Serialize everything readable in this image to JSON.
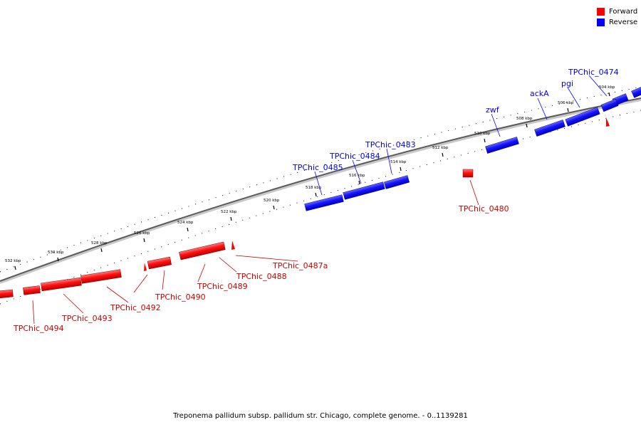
{
  "legend": {
    "forward": {
      "label": "Forward",
      "color": "#ff0000"
    },
    "reverse": {
      "label": "Reverse",
      "color": "#0000ff"
    }
  },
  "caption": "Treponema pallidum subsp. pallidum str. Chicago, complete genome. - 0..1139281",
  "ticks": [
    "504 kbp",
    "506 kbp",
    "508 kbp",
    "510 kbp",
    "512 kbp",
    "514 kbp",
    "516 kbp",
    "518 kbp",
    "520 kbp",
    "522 kbp",
    "524 kbp",
    "526 kbp",
    "528 kbp",
    "530 kbp",
    "532 kbp"
  ],
  "reverse_genes": [
    "TPChic_0474",
    "pgi",
    "ackA",
    "zwf",
    "TPChic_0483",
    "TPChic_0484",
    "TPChic_0485"
  ],
  "forward_genes": [
    "TPChic_0480",
    "TPChic_0487a",
    "TPChic_0488",
    "TPChic_0489",
    "TPChic_0490",
    "TPChic_0492",
    "TPChic_0493",
    "TPChic_0494"
  ]
}
